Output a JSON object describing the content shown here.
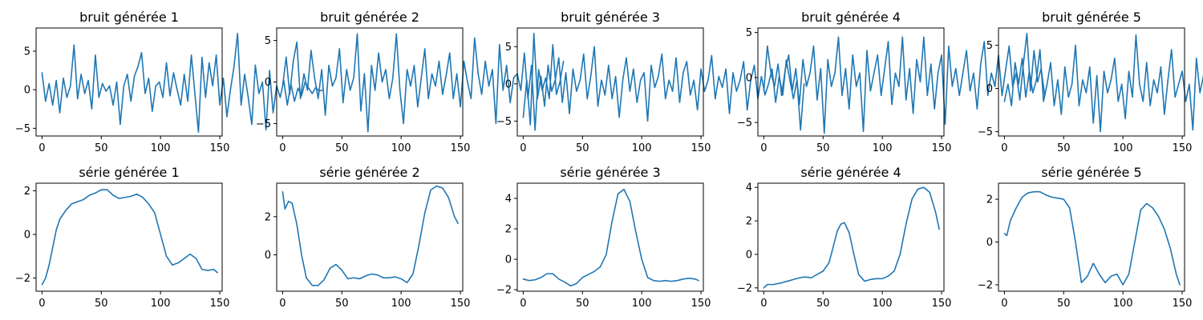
{
  "figure": {
    "line_color": "#1f77b4",
    "background": "#ffffff"
  },
  "chart_data": [
    {
      "type": "line",
      "title": "bruit générée 1",
      "xlim": [
        -5,
        152
      ],
      "ylim": [
        -6.0,
        8.0
      ],
      "xticks": [
        0,
        50,
        100,
        150
      ],
      "xtick_labels": [
        "0",
        "50",
        "100",
        "150"
      ],
      "yticks": [
        -5,
        0,
        5
      ],
      "ytick_labels": [
        "−5",
        "0",
        "5"
      ],
      "series": [
        {
          "x_start": 0,
          "x_step": 3,
          "values": [
            2.2,
            -1.5,
            0.8,
            -2.0,
            1.2,
            -3.0,
            1.5,
            -1.0,
            0.5,
            5.8,
            -1.2,
            2.0,
            -0.5,
            1.2,
            -2.5,
            4.5,
            -1.0,
            0.8,
            -0.2,
            0.5,
            -2.0,
            1.0,
            -4.5,
            0.5,
            2.0,
            -1.5,
            1.8,
            3.0,
            4.8,
            -0.5,
            1.5,
            -2.8,
            0.5,
            1.0,
            -1.0,
            3.5,
            -0.8,
            2.2,
            0.0,
            -2.0,
            2.0,
            -1.5,
            4.5,
            -0.5,
            -5.5,
            4.2,
            -1.0,
            3.5,
            0.5,
            4.5,
            -2.0,
            1.5,
            -3.5,
            0.0,
            3.0,
            7.3,
            -2.0,
            2.0,
            -1.0,
            -4.5,
            3.2,
            -0.5,
            1.0,
            -5.2,
            2.5,
            -3.0,
            0.5,
            -1.0,
            1.2,
            -2.0,
            0.8,
            -1.5,
            0.2,
            -0.8,
            1.0,
            0.2,
            -0.5,
            0.3,
            -0.2,
            0.0
          ]
        }
      ]
    },
    {
      "type": "line",
      "title": "bruit générée 2",
      "xlim": [
        -5,
        152
      ],
      "ylim": [
        -6.5,
        6.5
      ],
      "xticks": [
        0,
        50,
        100,
        150
      ],
      "xtick_labels": [
        "0",
        "50",
        "100",
        "150"
      ],
      "yticks": [
        -5,
        0,
        5
      ],
      "ytick_labels": [
        "−5",
        "0",
        "5"
      ],
      "series": [
        {
          "x_start": 0,
          "x_step": 3,
          "values": [
            -0.5,
            3.0,
            -1.5,
            2.5,
            4.8,
            -2.0,
            1.0,
            -1.0,
            3.8,
            0.5,
            -2.0,
            1.5,
            -4.0,
            2.0,
            -0.5,
            0.5,
            4.0,
            -2.5,
            1.5,
            -1.0,
            0.5,
            5.8,
            -3.5,
            1.0,
            -6.0,
            2.0,
            -1.0,
            3.5,
            0.0,
            1.5,
            -2.0,
            0.5,
            5.8,
            -1.0,
            -5.0,
            1.5,
            -0.5,
            2.0,
            -3.0,
            0.5,
            4.0,
            -2.0,
            1.0,
            -0.5,
            2.5,
            -1.5,
            0.8,
            3.5,
            -2.0,
            1.0,
            -3.0,
            2.5,
            0.0,
            -2.0,
            5.3,
            1.0,
            -1.5,
            2.5,
            -0.5,
            1.5,
            -5.0,
            4.5,
            -1.0,
            2.0,
            -2.5,
            0.5,
            1.0,
            -1.0,
            3.5,
            -2.0,
            2.0,
            -5.8,
            1.5,
            -1.0,
            0.5,
            -2.0,
            4.5,
            -1.5,
            0.0,
            2.5
          ]
        }
      ]
    },
    {
      "type": "line",
      "title": "bruit générée 3",
      "xlim": [
        -5,
        152
      ],
      "ylim": [
        -7.0,
        7.5
      ],
      "xticks": [
        0,
        50,
        100,
        150
      ],
      "xtick_labels": [
        "0",
        "50",
        "100",
        "150"
      ],
      "yticks": [
        -5,
        0,
        5
      ],
      "ytick_labels": [
        "−5",
        "0",
        "5"
      ],
      "series": [
        {
          "x_start": 0,
          "x_step": 3,
          "values": [
            -4.5,
            0.5,
            -5.5,
            6.8,
            -2.0,
            1.0,
            -3.0,
            2.5,
            -1.0,
            0.5,
            3.5,
            -2.5,
            1.5,
            -4.0,
            2.0,
            -1.0,
            0.5,
            4.0,
            -2.0,
            1.0,
            5.0,
            -3.0,
            0.5,
            -1.5,
            2.5,
            -2.0,
            1.0,
            -4.5,
            0.5,
            3.5,
            -1.0,
            2.0,
            -2.5,
            0.5,
            1.5,
            -5.0,
            2.5,
            -0.5,
            1.0,
            4.0,
            -2.0,
            0.5,
            -1.0,
            3.5,
            -2.5,
            1.5,
            3.0,
            -1.5,
            0.5,
            -3.5,
            2.0,
            -1.0,
            0.5,
            3.8,
            -2.0,
            1.0,
            -0.5,
            2.0,
            -4.0,
            1.5,
            -1.0,
            0.5,
            3.0,
            -3.5,
            0.5,
            2.5,
            -2.0,
            1.0,
            -1.5,
            0.0,
            2.0,
            -2.5,
            1.0,
            -1.5,
            3.2,
            0.5,
            -2.0,
            0.5,
            -6.2,
            0.0
          ]
        }
      ]
    },
    {
      "type": "line",
      "title": "bruit générée 4",
      "xlim": [
        -5,
        152
      ],
      "ylim": [
        -6.5,
        5.5
      ],
      "xticks": [
        0,
        50,
        100,
        150
      ],
      "xtick_labels": [
        "0",
        "50",
        "100",
        "150"
      ],
      "yticks": [
        -5,
        0,
        5
      ],
      "ytick_labels": [
        "−5",
        "0",
        "5"
      ],
      "series": [
        {
          "x_start": 0,
          "x_step": 3,
          "values": [
            -1.5,
            3.5,
            0.5,
            -1.0,
            1.5,
            -2.0,
            0.8,
            2.5,
            -1.5,
            1.0,
            -3.0,
            2.0,
            -1.0,
            0.5,
            3.5,
            -2.5,
            1.0,
            -6.2,
            2.0,
            -1.0,
            0.5,
            4.5,
            -2.0,
            1.0,
            -3.5,
            2.5,
            -1.0,
            0.5,
            -6.0,
            3.0,
            -1.5,
            0.5,
            2.5,
            -2.0,
            1.0,
            4.0,
            -3.0,
            0.5,
            -1.0,
            4.5,
            -2.5,
            1.0,
            -4.0,
            2.0,
            -0.5,
            4.5,
            -2.0,
            1.5,
            -3.5,
            0.5,
            2.5,
            -5.2,
            3.5,
            -1.0,
            1.0,
            -2.0,
            0.5,
            3.0,
            -1.5,
            0.5,
            -3.5,
            1.5,
            4.0,
            -2.0,
            0.5,
            -1.0,
            2.5,
            -2.0,
            0.8,
            3.5,
            -1.0,
            0.5,
            -2.5,
            1.5,
            4.9,
            -1.5,
            3.0,
            -0.5,
            1.0,
            -2.0
          ]
        }
      ]
    },
    {
      "type": "line",
      "title": "bruit générée 5",
      "xlim": [
        -5,
        152
      ],
      "ylim": [
        -5.5,
        7.0
      ],
      "xticks": [
        0,
        50,
        100,
        150
      ],
      "xtick_labels": [
        "0",
        "50",
        "100",
        "150"
      ],
      "yticks": [
        -5,
        0,
        5
      ],
      "ytick_labels": [
        "−5",
        "0",
        "5"
      ],
      "series": [
        {
          "x_start": 0,
          "x_step": 3,
          "values": [
            -1.5,
            0.5,
            -2.0,
            3.0,
            0.5,
            3.5,
            -1.0,
            2.0,
            -0.5,
            1.0,
            4.5,
            -1.5,
            0.5,
            3.0,
            -2.0,
            1.0,
            -3.0,
            2.5,
            -1.0,
            0.5,
            5.0,
            -2.0,
            1.0,
            -0.5,
            2.5,
            -4.0,
            1.5,
            -5.0,
            2.0,
            -0.5,
            1.0,
            3.5,
            -1.5,
            0.5,
            -3.5,
            2.0,
            -1.0,
            6.2,
            0.5,
            -1.5,
            3.0,
            -2.0,
            1.0,
            -0.5,
            2.5,
            -3.0,
            1.0,
            4.5,
            -1.0,
            0.5,
            2.0,
            -1.5,
            0.5,
            -4.8,
            3.5,
            -0.5,
            1.5,
            -2.0,
            0.5,
            3.0,
            -1.0,
            2.0,
            -2.5,
            0.5,
            1.5,
            -1.0,
            3.0,
            0.5,
            -2.0,
            1.5,
            2.5,
            0.0,
            2.5,
            3.0,
            -1.0,
            2.5,
            -3.0,
            -2.0,
            -1.0,
            -1.2
          ]
        }
      ]
    },
    {
      "type": "line",
      "title": "série générée 1",
      "xlim": [
        -5,
        152
      ],
      "ylim": [
        -2.6,
        2.35
      ],
      "xticks": [
        0,
        50,
        100,
        150
      ],
      "xtick_labels": [
        "0",
        "50",
        "100",
        "150"
      ],
      "yticks": [
        -2,
        0,
        2
      ],
      "ytick_labels": [
        "−2",
        "0",
        "2"
      ],
      "series": [
        {
          "x": [
            0,
            3,
            6,
            9,
            12,
            15,
            20,
            25,
            30,
            35,
            40,
            45,
            50,
            55,
            60,
            65,
            70,
            75,
            80,
            85,
            90,
            95,
            100,
            105,
            110,
            115,
            120,
            125,
            130,
            135,
            140,
            145,
            148
          ],
          "values": [
            -2.3,
            -2.0,
            -1.4,
            -0.6,
            0.2,
            0.7,
            1.1,
            1.4,
            1.5,
            1.6,
            1.8,
            1.9,
            2.05,
            2.05,
            1.8,
            1.65,
            1.7,
            1.75,
            1.85,
            1.7,
            1.4,
            1.0,
            0.0,
            -1.0,
            -1.4,
            -1.3,
            -1.1,
            -0.9,
            -1.1,
            -1.6,
            -1.65,
            -1.6,
            -1.75
          ]
        }
      ]
    },
    {
      "type": "line",
      "title": "série générée 2",
      "xlim": [
        -5,
        152
      ],
      "ylim": [
        -1.9,
        3.75
      ],
      "xticks": [
        0,
        50,
        100,
        150
      ],
      "xtick_labels": [
        "0",
        "50",
        "100",
        "150"
      ],
      "yticks": [
        0,
        2
      ],
      "ytick_labels": [
        "0",
        "2"
      ],
      "series": [
        {
          "x": [
            0,
            2,
            5,
            8,
            12,
            16,
            20,
            25,
            30,
            35,
            40,
            45,
            50,
            55,
            60,
            65,
            70,
            75,
            80,
            85,
            90,
            95,
            100,
            105,
            110,
            115,
            120,
            125,
            130,
            135,
            140,
            145,
            148
          ],
          "values": [
            3.3,
            2.4,
            2.8,
            2.7,
            1.6,
            0.0,
            -1.2,
            -1.6,
            -1.6,
            -1.3,
            -0.7,
            -0.5,
            -0.8,
            -1.25,
            -1.2,
            -1.25,
            -1.1,
            -1.0,
            -1.05,
            -1.2,
            -1.2,
            -1.15,
            -1.25,
            -1.45,
            -1.0,
            0.5,
            2.2,
            3.4,
            3.6,
            3.5,
            3.0,
            2.0,
            1.65
          ]
        }
      ]
    },
    {
      "type": "line",
      "title": "série générée 3",
      "xlim": [
        -5,
        152
      ],
      "ylim": [
        -2.1,
        5.0
      ],
      "xticks": [
        0,
        50,
        100,
        150
      ],
      "xtick_labels": [
        "0",
        "50",
        "100",
        "150"
      ],
      "yticks": [
        -2,
        0,
        2,
        4
      ],
      "ytick_labels": [
        "−2",
        "0",
        "2",
        "4"
      ],
      "series": [
        {
          "x": [
            0,
            5,
            10,
            15,
            20,
            25,
            30,
            35,
            40,
            45,
            50,
            55,
            60,
            65,
            70,
            75,
            80,
            85,
            90,
            95,
            100,
            105,
            110,
            115,
            120,
            125,
            130,
            135,
            140,
            145,
            148
          ],
          "values": [
            -1.3,
            -1.4,
            -1.35,
            -1.2,
            -0.95,
            -0.95,
            -1.3,
            -1.5,
            -1.75,
            -1.6,
            -1.2,
            -1.0,
            -0.8,
            -0.5,
            0.3,
            2.5,
            4.3,
            4.6,
            3.8,
            1.8,
            0.0,
            -1.2,
            -1.4,
            -1.45,
            -1.4,
            -1.45,
            -1.4,
            -1.3,
            -1.25,
            -1.3,
            -1.4
          ]
        }
      ]
    },
    {
      "type": "line",
      "title": "série générée 4",
      "xlim": [
        -5,
        152
      ],
      "ylim": [
        -2.2,
        4.25
      ],
      "xticks": [
        0,
        50,
        100,
        150
      ],
      "xtick_labels": [
        "0",
        "50",
        "100",
        "150"
      ],
      "yticks": [
        -2,
        0,
        2,
        4
      ],
      "ytick_labels": [
        "−2",
        "0",
        "2",
        "4"
      ],
      "series": [
        {
          "x": [
            0,
            3,
            8,
            15,
            20,
            25,
            30,
            35,
            40,
            45,
            50,
            55,
            58,
            62,
            65,
            68,
            72,
            76,
            80,
            85,
            90,
            95,
            100,
            105,
            110,
            115,
            120,
            125,
            130,
            135,
            140,
            145,
            148
          ],
          "values": [
            -2.0,
            -1.8,
            -1.8,
            -1.7,
            -1.6,
            -1.5,
            -1.4,
            -1.35,
            -1.4,
            -1.2,
            -1.0,
            -0.5,
            0.3,
            1.4,
            1.8,
            1.9,
            1.3,
            0.0,
            -1.2,
            -1.6,
            -1.5,
            -1.45,
            -1.45,
            -1.3,
            -1.0,
            0.0,
            1.8,
            3.3,
            3.9,
            4.0,
            3.7,
            2.5,
            1.5
          ]
        }
      ]
    },
    {
      "type": "line",
      "title": "série générée 5",
      "xlim": [
        -5,
        152
      ],
      "ylim": [
        -2.3,
        2.75
      ],
      "xticks": [
        0,
        50,
        100,
        150
      ],
      "xtick_labels": [
        "0",
        "50",
        "100",
        "150"
      ],
      "yticks": [
        -2,
        0,
        2
      ],
      "ytick_labels": [
        "−2",
        "0",
        "2"
      ],
      "series": [
        {
          "x": [
            0,
            2,
            5,
            10,
            15,
            20,
            25,
            30,
            35,
            40,
            45,
            50,
            55,
            60,
            65,
            70,
            75,
            80,
            85,
            90,
            95,
            100,
            105,
            110,
            115,
            120,
            125,
            130,
            135,
            140,
            145,
            148
          ],
          "values": [
            0.4,
            0.3,
            1.0,
            1.6,
            2.1,
            2.3,
            2.35,
            2.35,
            2.2,
            2.1,
            2.05,
            2.0,
            1.6,
            0.0,
            -1.9,
            -1.6,
            -1.0,
            -1.5,
            -1.9,
            -1.6,
            -1.5,
            -2.0,
            -1.5,
            0.0,
            1.5,
            1.8,
            1.6,
            1.2,
            0.6,
            -0.3,
            -1.5,
            -2.0
          ]
        }
      ]
    }
  ]
}
